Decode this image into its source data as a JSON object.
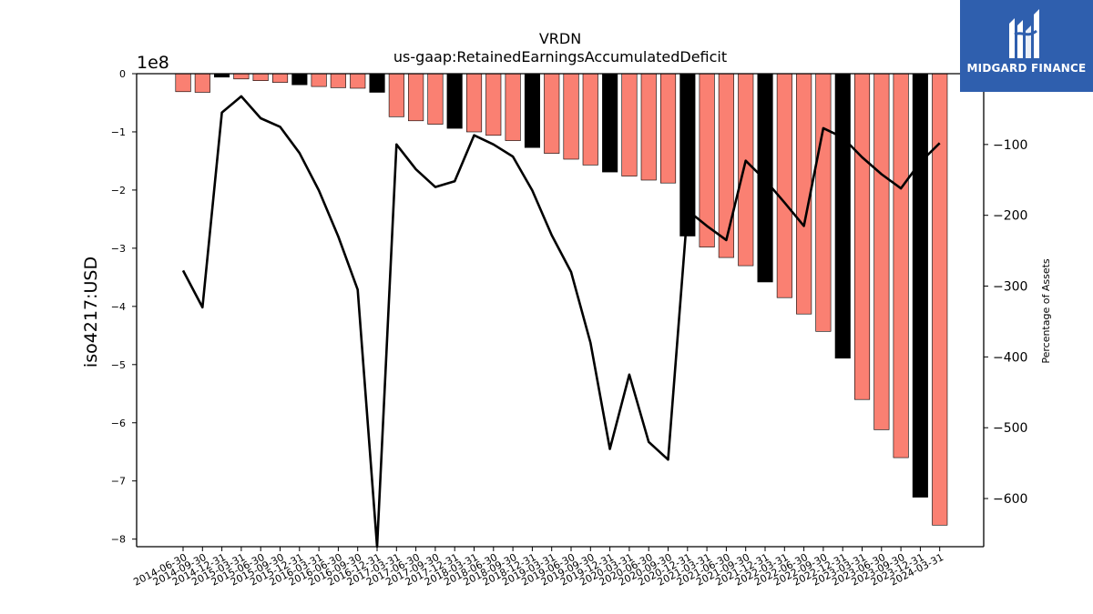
{
  "chart_data": {
    "type": "bar",
    "title": "VRDN",
    "subtitle": "us-gaap:RetainedEarningsAccumulatedDeficit",
    "ylabel": "iso4217:USD",
    "y2label": "Percentage of Assets",
    "y_offset_label": "1e8",
    "ylim": [
      -8.13,
      0
    ],
    "y2lim": [
      -668,
      0
    ],
    "yticks": [
      0,
      -1,
      -2,
      -3,
      -4,
      -5,
      -6,
      -7,
      -8
    ],
    "y2ticks": [
      -100,
      -200,
      -300,
      -400,
      -500,
      -600
    ],
    "grid": false,
    "categories": [
      "2014-06-30",
      "2014-09-30",
      "2014-12-31",
      "2015-03-31",
      "2015-06-30",
      "2015-09-30",
      "2015-12-31",
      "2016-03-31",
      "2016-06-30",
      "2016-09-30",
      "2016-12-31",
      "2017-03-31",
      "2017-06-30",
      "2017-09-30",
      "2017-12-31",
      "2018-03-31",
      "2018-06-30",
      "2018-09-30",
      "2018-12-31",
      "2019-03-31",
      "2019-06-30",
      "2019-09-30",
      "2019-12-31",
      "2020-03-31",
      "2020-06-30",
      "2020-09-30",
      "2020-12-31",
      "2021-03-31",
      "2021-06-30",
      "2021-09-30",
      "2021-12-31",
      "2022-03-31",
      "2022-06-30",
      "2022-09-30",
      "2022-12-31",
      "2023-03-31",
      "2023-06-30",
      "2023-09-30",
      "2023-12-31",
      "2024-03-31"
    ],
    "values": [
      -0.31,
      -0.32,
      -0.06,
      -0.09,
      -0.12,
      -0.15,
      -0.19,
      -0.22,
      -0.24,
      -0.25,
      -0.32,
      -0.74,
      -0.81,
      -0.87,
      -0.94,
      -1.0,
      -1.06,
      -1.15,
      -1.27,
      -1.37,
      -1.47,
      -1.57,
      -1.69,
      -1.76,
      -1.83,
      -1.88,
      -2.79,
      -2.98,
      -3.16,
      -3.3,
      -3.58,
      -3.85,
      -4.13,
      -4.43,
      -4.89,
      -5.6,
      -6.12,
      -6.6,
      -7.28,
      -7.76
    ],
    "bar_colors": [
      "#fa8072",
      "#fa8072",
      "#000000",
      "#fa8072",
      "#fa8072",
      "#fa8072",
      "#000000",
      "#fa8072",
      "#fa8072",
      "#fa8072",
      "#000000",
      "#fa8072",
      "#fa8072",
      "#fa8072",
      "#000000",
      "#fa8072",
      "#fa8072",
      "#fa8072",
      "#000000",
      "#fa8072",
      "#fa8072",
      "#fa8072",
      "#000000",
      "#fa8072",
      "#fa8072",
      "#fa8072",
      "#000000",
      "#fa8072",
      "#fa8072",
      "#fa8072",
      "#000000",
      "#fa8072",
      "#fa8072",
      "#fa8072",
      "#000000",
      "#fa8072",
      "#fa8072",
      "#fa8072",
      "#000000",
      "#fa8072"
    ],
    "line_series": {
      "axis": "right",
      "color": "#000000",
      "values": [
        -278,
        -330,
        -55,
        -32,
        -63,
        -75,
        -112,
        -165,
        -230,
        -305,
        -670,
        -100,
        -135,
        -160,
        -152,
        -87,
        -100,
        -117,
        -165,
        -228,
        -280,
        -380,
        -530,
        -425,
        -520,
        -545,
        -193,
        -215,
        -235,
        -123,
        -150,
        -182,
        -215,
        -77,
        -90,
        -118,
        -142,
        -162,
        -125,
        -98
      ]
    }
  },
  "logo": {
    "brand_text": "MIDGARD FINANCE",
    "icon": "midgard-logo-icon",
    "background": "#2f5fae"
  }
}
